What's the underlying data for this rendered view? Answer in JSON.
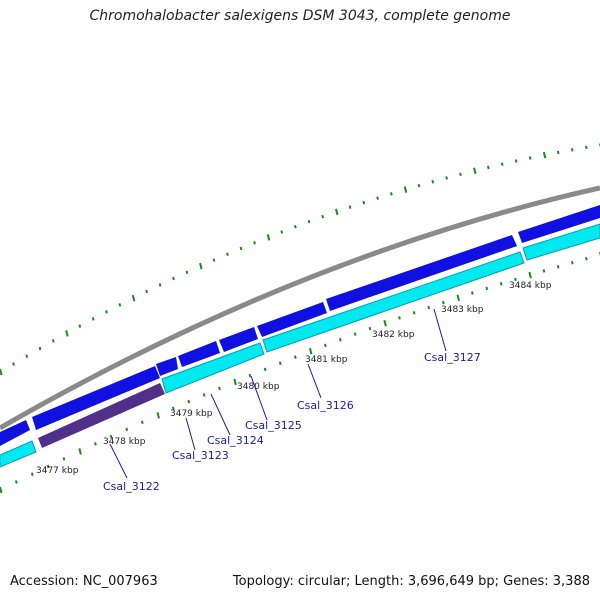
{
  "title": "Chromohalobacter salexigens DSM 3043, complete genome",
  "footer": {
    "accession": "Accession: NC_007963",
    "summary": "Topology: circular; Length: 3,696,649 bp; Genes: 3,388"
  },
  "colors": {
    "backbone": "#8a8a8a",
    "forward_gene": "#1010e0",
    "reverse_gene": "#00e8f0",
    "reverse_gene_edge": "#00a0b0",
    "dark_gene": "#50308a",
    "gc_tick": "#1a8a1a",
    "label_line": "#1a1aa8"
  },
  "ticks": [
    "3477 kbp",
    "3478 kbp",
    "3479 kbp",
    "3480 kbp",
    "3481 kbp",
    "3482 kbp",
    "3483 kbp",
    "3484 kbp"
  ],
  "genes": [
    "Csal_3122",
    "Csal_3123",
    "Csal_3124",
    "Csal_3125",
    "Csal_3126",
    "Csal_3127"
  ]
}
